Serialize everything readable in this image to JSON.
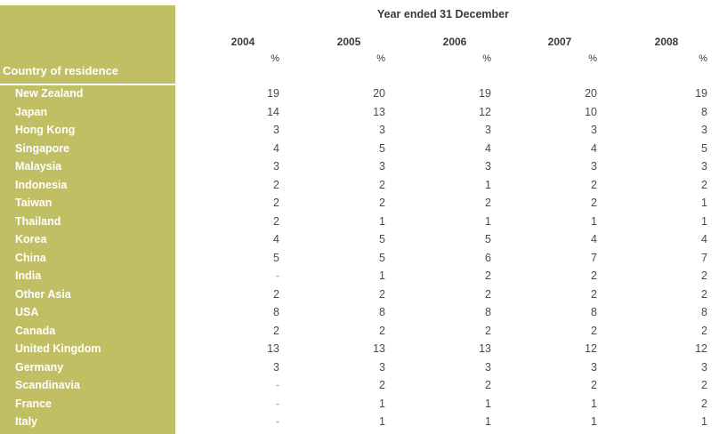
{
  "table": {
    "caption": "Year ended 31 December",
    "row_header_title": "Country of residence",
    "years": [
      "2004",
      "2005",
      "2006",
      "2007",
      "2008"
    ],
    "unit": "%",
    "rows": [
      {
        "country": "New Zealand",
        "values": [
          "19",
          "20",
          "19",
          "20",
          "19"
        ]
      },
      {
        "country": "Japan",
        "values": [
          "14",
          "13",
          "12",
          "10",
          "8"
        ]
      },
      {
        "country": "Hong Kong",
        "values": [
          "3",
          "3",
          "3",
          "3",
          "3"
        ]
      },
      {
        "country": "Singapore",
        "values": [
          "4",
          "5",
          "4",
          "4",
          "5"
        ]
      },
      {
        "country": "Malaysia",
        "values": [
          "3",
          "3",
          "3",
          "3",
          "3"
        ]
      },
      {
        "country": "Indonesia",
        "values": [
          "2",
          "2",
          "1",
          "2",
          "2"
        ]
      },
      {
        "country": "Taiwan",
        "values": [
          "2",
          "2",
          "2",
          "2",
          "1"
        ]
      },
      {
        "country": "Thailand",
        "values": [
          "2",
          "1",
          "1",
          "1",
          "1"
        ]
      },
      {
        "country": "Korea",
        "values": [
          "4",
          "5",
          "5",
          "4",
          "4"
        ]
      },
      {
        "country": "China",
        "values": [
          "5",
          "5",
          "6",
          "7",
          "7"
        ]
      },
      {
        "country": "India",
        "values": [
          "-",
          "1",
          "2",
          "2",
          "2"
        ]
      },
      {
        "country": "Other Asia",
        "values": [
          "2",
          "2",
          "2",
          "2",
          "2"
        ]
      },
      {
        "country": "USA",
        "values": [
          "8",
          "8",
          "8",
          "8",
          "8"
        ]
      },
      {
        "country": "Canada",
        "values": [
          "2",
          "2",
          "2",
          "2",
          "2"
        ]
      },
      {
        "country": "United Kingdom",
        "values": [
          "13",
          "13",
          "13",
          "12",
          "12"
        ]
      },
      {
        "country": "Germany",
        "values": [
          "3",
          "3",
          "3",
          "3",
          "3"
        ]
      },
      {
        "country": "Scandinavia",
        "values": [
          "-",
          "2",
          "2",
          "2",
          "2"
        ]
      },
      {
        "country": "France",
        "values": [
          "-",
          "1",
          "1",
          "1",
          "2"
        ]
      },
      {
        "country": "Italy",
        "values": [
          "-",
          "1",
          "1",
          "1",
          "1"
        ]
      }
    ]
  },
  "colors": {
    "sidebar": "#c1bf64",
    "sidebar_text": "#ffffff",
    "body_text": "#3a3a3a"
  }
}
